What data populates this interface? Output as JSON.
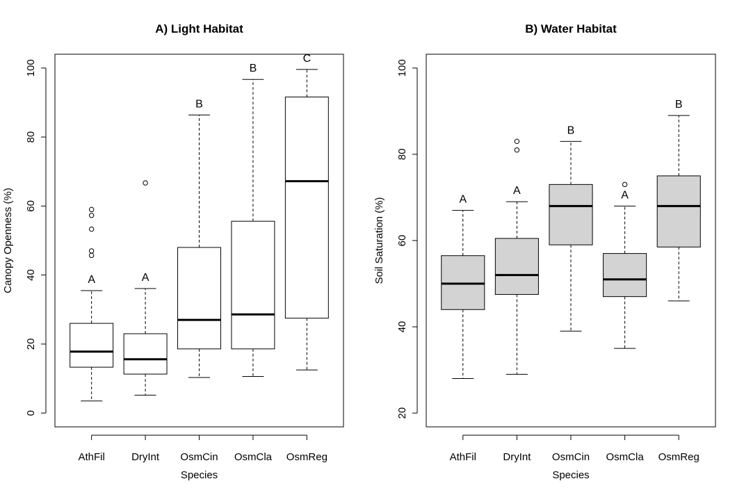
{
  "chart_data": [
    {
      "type": "box",
      "title": "A) Light Habitat",
      "xlabel": "Species",
      "ylabel": "Canopy Openness (%)",
      "ylim": [
        -4,
        104
      ],
      "yticks": [
        0,
        20,
        40,
        60,
        80,
        100
      ],
      "box_fill": "#ffffff",
      "categories": [
        "AthFil",
        "DryInt",
        "OsmCin",
        "OsmCla",
        "OsmReg"
      ],
      "boxes": [
        {
          "whisker_low": 3.5,
          "q1": 13.3,
          "median": 17.8,
          "q3": 26.0,
          "whisker_high": 35.5,
          "outliers": [
            45.7,
            47.0,
            53.3,
            57.3,
            59.0
          ],
          "letter": "A"
        },
        {
          "whisker_low": 5.2,
          "q1": 11.3,
          "median": 15.6,
          "q3": 23.0,
          "whisker_high": 36.1,
          "outliers": [
            66.7
          ],
          "letter": "A"
        },
        {
          "whisker_low": 10.3,
          "q1": 18.6,
          "median": 27.0,
          "q3": 48.0,
          "whisker_high": 86.4,
          "outliers": [],
          "letter": "B"
        },
        {
          "whisker_low": 10.6,
          "q1": 18.6,
          "median": 28.6,
          "q3": 55.6,
          "whisker_high": 96.7,
          "outliers": [],
          "letter": "B"
        },
        {
          "whisker_low": 12.5,
          "q1": 27.5,
          "median": 67.2,
          "q3": 91.6,
          "whisker_high": 99.6,
          "outliers": [],
          "letter": "C"
        }
      ]
    },
    {
      "type": "box",
      "title": "B) Water Habitat",
      "xlabel": "Species",
      "ylabel": "Soil Saturation (%)",
      "ylim": [
        16.8,
        103.2
      ],
      "yticks": [
        20,
        40,
        60,
        80,
        100
      ],
      "box_fill": "#d3d3d3",
      "categories": [
        "AthFil",
        "DryInt",
        "OsmCin",
        "OsmCla",
        "OsmReg"
      ],
      "boxes": [
        {
          "whisker_low": 28,
          "q1": 44,
          "median": 50,
          "q3": 56.5,
          "whisker_high": 67,
          "outliers": [],
          "letter": "A"
        },
        {
          "whisker_low": 29,
          "q1": 47.5,
          "median": 52,
          "q3": 60.5,
          "whisker_high": 69,
          "outliers": [
            81,
            83
          ],
          "letter": "A"
        },
        {
          "whisker_low": 39,
          "q1": 59,
          "median": 68,
          "q3": 73,
          "whisker_high": 83,
          "outliers": [],
          "letter": "B"
        },
        {
          "whisker_low": 35,
          "q1": 47,
          "median": 51,
          "q3": 57,
          "whisker_high": 68,
          "outliers": [
            73
          ],
          "letter": "A"
        },
        {
          "whisker_low": 46,
          "q1": 58.5,
          "median": 68,
          "q3": 75,
          "whisker_high": 89,
          "outliers": [],
          "letter": "B"
        }
      ]
    }
  ]
}
